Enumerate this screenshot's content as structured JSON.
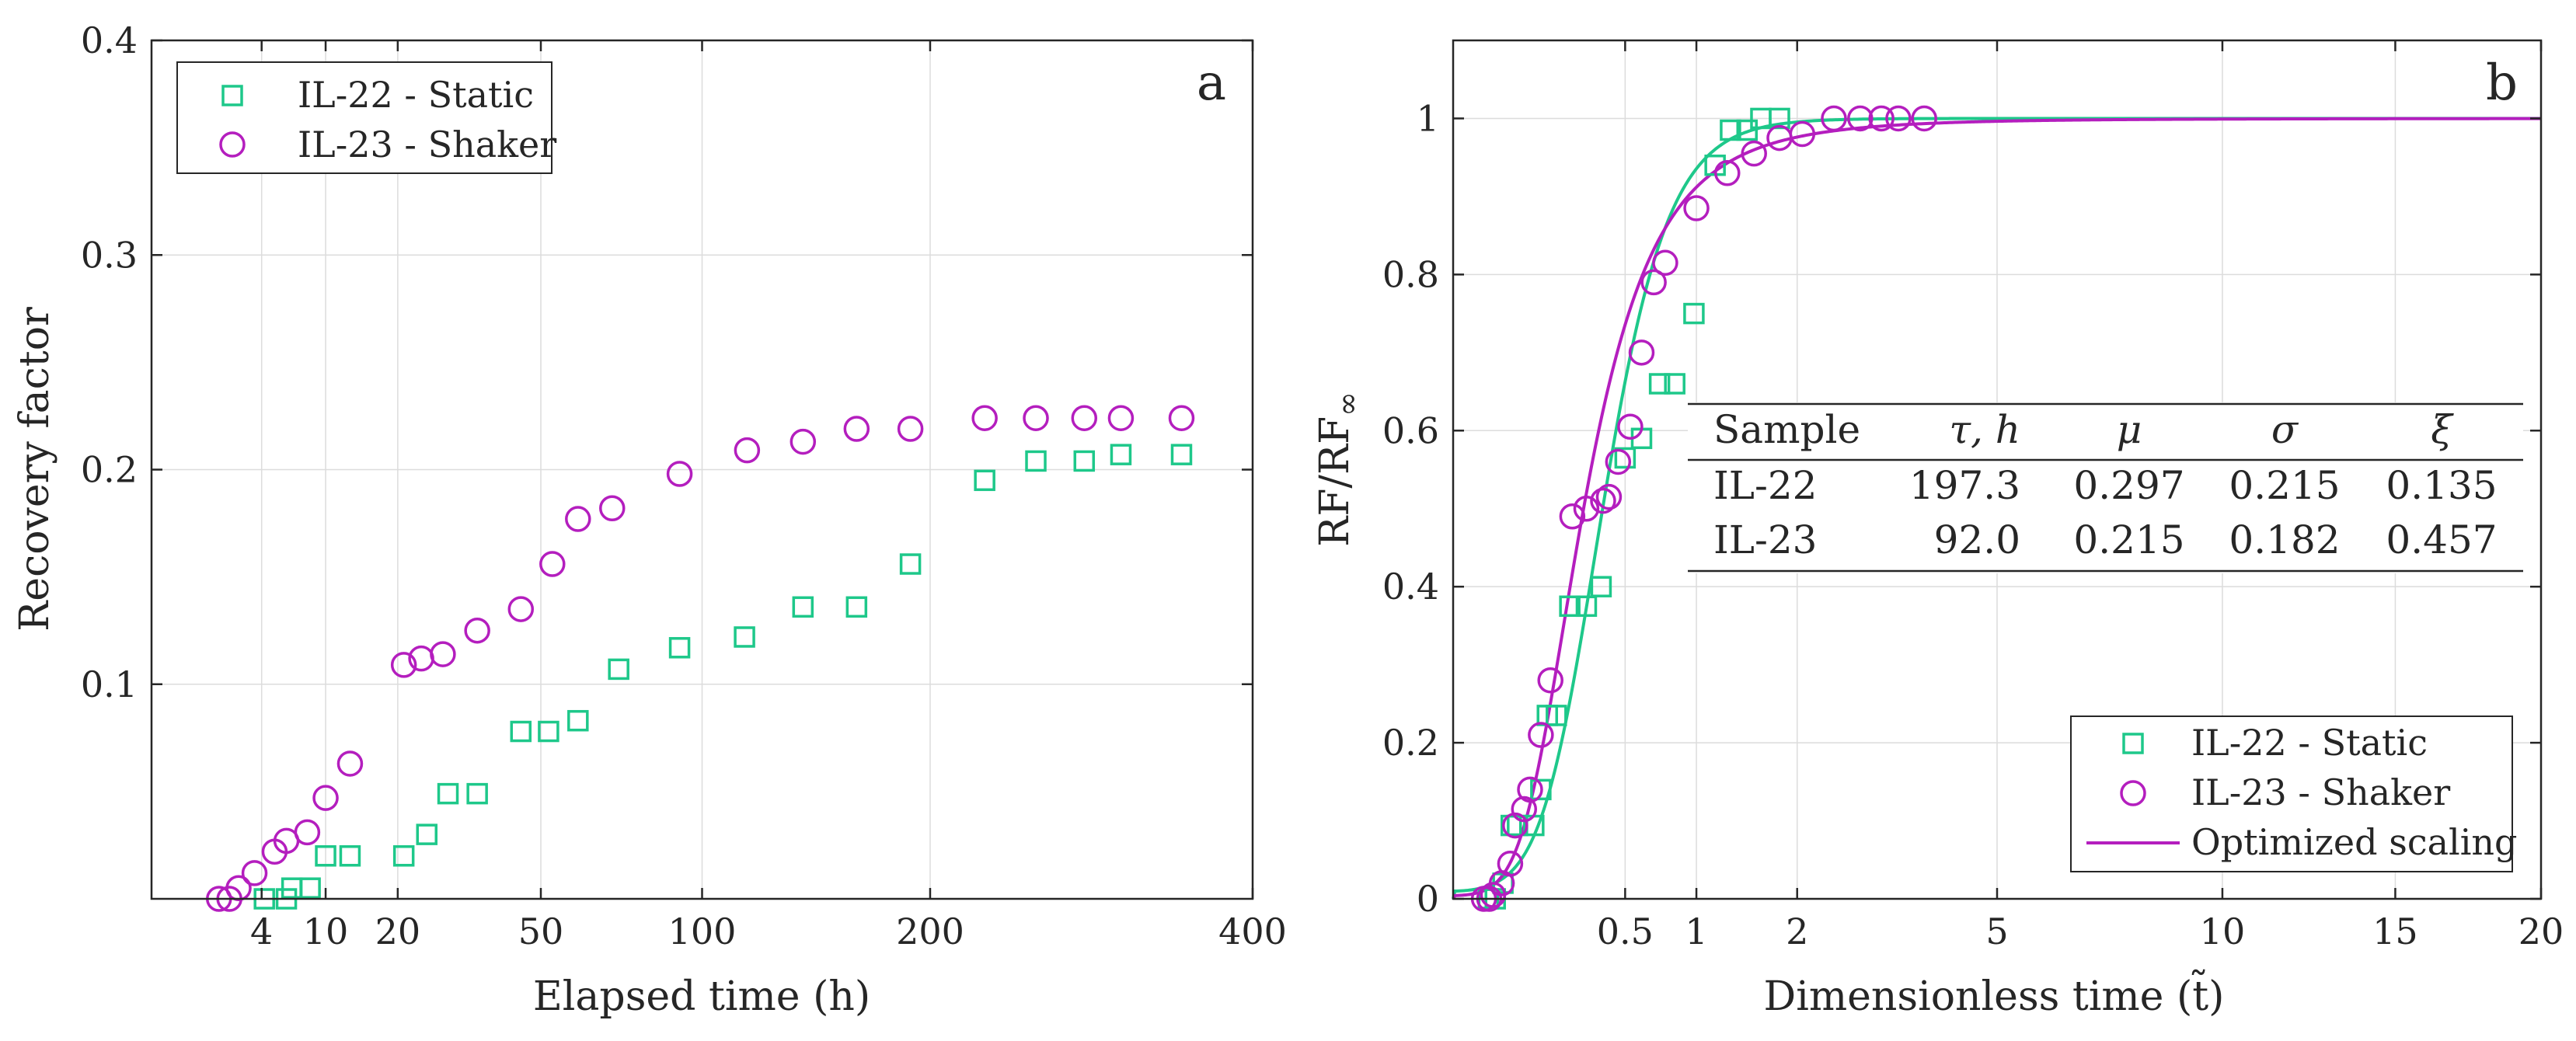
{
  "colors": {
    "static": "#1ec88a",
    "shaker": "#b41ebe",
    "grid": "#dcdcdc",
    "axis": "#262626"
  },
  "chart_data": [
    {
      "type": "scatter",
      "panel_label": "a",
      "xlabel": "Elapsed time (h)",
      "ylabel": "Recovery factor",
      "x_scale": "sqrt",
      "xlim": [
        0,
        400
      ],
      "ylim": [
        0,
        0.4
      ],
      "xticks": [
        4,
        10,
        20,
        50,
        100,
        200,
        400
      ],
      "yticks": [
        0.1,
        0.2,
        0.3,
        0.4
      ],
      "grid": true,
      "legend_position": "top-left",
      "series": [
        {
          "name": "IL-22 - Static",
          "marker": "square",
          "color": "#1ec88a",
          "points": [
            [
              4.2,
              0
            ],
            [
              6,
              0
            ],
            [
              6.5,
              0.005
            ],
            [
              8.3,
              0.005
            ],
            [
              10,
              0.02
            ],
            [
              13,
              0.02
            ],
            [
              21,
              0.02
            ],
            [
              25,
              0.03
            ],
            [
              29,
              0.049
            ],
            [
              35,
              0.049
            ],
            [
              45,
              0.078
            ],
            [
              52,
              0.078
            ],
            [
              60,
              0.083
            ],
            [
              72,
              0.107
            ],
            [
              92,
              0.117
            ],
            [
              116,
              0.122
            ],
            [
              140,
              0.136
            ],
            [
              164,
              0.136
            ],
            [
              190,
              0.156
            ],
            [
              229,
              0.195
            ],
            [
              258,
              0.204
            ],
            [
              287,
              0.204
            ],
            [
              310,
              0.207
            ],
            [
              350,
              0.207
            ]
          ]
        },
        {
          "name": "IL-23 - Shaker",
          "marker": "circle",
          "color": "#b41ebe",
          "points": [
            [
              1.5,
              0
            ],
            [
              2,
              0
            ],
            [
              2.5,
              0.005
            ],
            [
              3.5,
              0.012
            ],
            [
              5,
              0.022
            ],
            [
              6,
              0.027
            ],
            [
              8,
              0.031
            ],
            [
              10,
              0.047
            ],
            [
              13,
              0.063
            ],
            [
              21,
              0.109
            ],
            [
              24,
              0.112
            ],
            [
              28,
              0.114
            ],
            [
              35,
              0.125
            ],
            [
              45,
              0.135
            ],
            [
              53,
              0.156
            ],
            [
              60,
              0.177
            ],
            [
              70,
              0.182
            ],
            [
              92,
              0.198
            ],
            [
              117,
              0.209
            ],
            [
              140,
              0.213
            ],
            [
              164,
              0.219
            ],
            [
              190,
              0.219
            ],
            [
              229,
              0.224
            ],
            [
              258,
              0.224
            ],
            [
              287,
              0.224
            ],
            [
              310,
              0.224
            ],
            [
              350,
              0.224
            ]
          ]
        }
      ]
    },
    {
      "type": "scatter",
      "panel_label": "b",
      "xlabel": "Dimensionless time (t̃)",
      "ylabel_main": "RF/RF",
      "ylabel_sub": "∞",
      "x_scale": "sqrt",
      "xlim": [
        0,
        20
      ],
      "ylim": [
        0,
        1.1
      ],
      "xticks": [
        0.5,
        1,
        2,
        5,
        10,
        15,
        20
      ],
      "yticks": [
        0,
        0.2,
        0.4,
        0.6,
        0.8,
        1
      ],
      "grid": true,
      "legend_position": "bottom-right",
      "series": [
        {
          "name": "IL-22 - Static",
          "marker": "square",
          "color": "#1ec88a",
          "points": [
            [
              0.021,
              0
            ],
            [
              0.03,
              0
            ],
            [
              0.042,
              0.02
            ],
            [
              0.057,
              0.094
            ],
            [
              0.07,
              0.094
            ],
            [
              0.11,
              0.094
            ],
            [
              0.13,
              0.14
            ],
            [
              0.15,
              0.235
            ],
            [
              0.18,
              0.235
            ],
            [
              0.23,
              0.375
            ],
            [
              0.3,
              0.375
            ],
            [
              0.37,
              0.4
            ],
            [
              0.5,
              0.565
            ],
            [
              0.6,
              0.59
            ],
            [
              0.72,
              0.66
            ],
            [
              0.83,
              0.66
            ],
            [
              0.98,
              0.75
            ],
            [
              1.16,
              0.94
            ],
            [
              1.3,
              0.985
            ],
            [
              1.46,
              0.985
            ],
            [
              1.6,
              1
            ],
            [
              1.8,
              1
            ]
          ]
        },
        {
          "name": "IL-23 - Shaker",
          "marker": "circle",
          "color": "#b41ebe",
          "points": [
            [
              0.016,
              0
            ],
            [
              0.022,
              0
            ],
            [
              0.027,
              0.005
            ],
            [
              0.04,
              0.02
            ],
            [
              0.055,
              0.045
            ],
            [
              0.065,
              0.094
            ],
            [
              0.085,
              0.115
            ],
            [
              0.1,
              0.14
            ],
            [
              0.13,
              0.21
            ],
            [
              0.16,
              0.28
            ],
            [
              0.24,
              0.49
            ],
            [
              0.3,
              0.5
            ],
            [
              0.38,
              0.51
            ],
            [
              0.41,
              0.515
            ],
            [
              0.46,
              0.56
            ],
            [
              0.53,
              0.605
            ],
            [
              0.6,
              0.7
            ],
            [
              0.68,
              0.79
            ],
            [
              0.76,
              0.815
            ],
            [
              1,
              0.885
            ],
            [
              1.27,
              0.93
            ],
            [
              1.53,
              0.955
            ],
            [
              1.8,
              0.975
            ],
            [
              2.06,
              0.98
            ],
            [
              2.45,
              1
            ],
            [
              2.8,
              1
            ],
            [
              3.1,
              1
            ],
            [
              3.35,
              1
            ],
            [
              3.75,
              1
            ]
          ]
        },
        {
          "name": "Optimized scaling",
          "marker": "line",
          "color": "#b41ebe",
          "fit_params": {
            "IL-22": {
              "mu": 0.297,
              "sigma": 0.215,
              "xi": 0.135
            },
            "IL-23": {
              "mu": 0.215,
              "sigma": 0.182,
              "xi": 0.457
            }
          }
        }
      ],
      "table": {
        "headers": [
          "Sample",
          "τ, h",
          "μ",
          "σ",
          "ξ"
        ],
        "rows": [
          [
            "IL-22",
            "197.3",
            "0.297",
            "0.215",
            "0.135"
          ],
          [
            "IL-23",
            "92.0",
            "0.215",
            "0.182",
            "0.457"
          ]
        ]
      }
    }
  ]
}
